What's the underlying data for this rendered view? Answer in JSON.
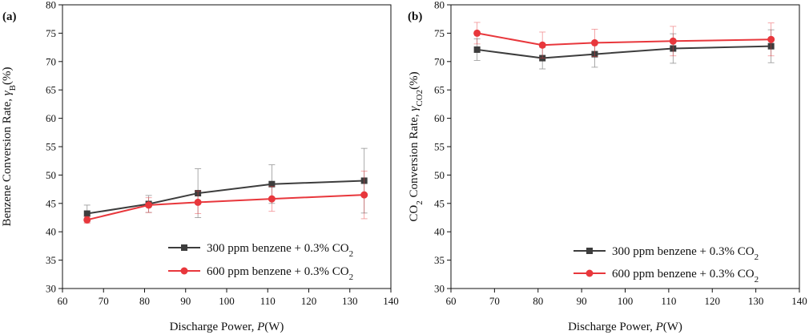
{
  "chart_data": [
    {
      "type": "line",
      "panel_label": "(a)",
      "xlabel_main": "Discharge Power, ",
      "xlabel_var": "P",
      "xlabel_unit": "(W)",
      "ylabel_main": "Benzene Conversion Rate,",
      "ylabel_var": "γ",
      "ylabel_sub": "B",
      "ylabel_unit": "(%)",
      "xlim": [
        60,
        140
      ],
      "ylim": [
        30,
        80
      ],
      "xticks": [
        60,
        70,
        80,
        90,
        100,
        110,
        120,
        130,
        140
      ],
      "yticks": [
        30,
        35,
        40,
        45,
        50,
        55,
        60,
        65,
        70,
        75,
        80
      ],
      "legend_position": "bottom-right",
      "series": [
        {
          "name": "300 ppm benzene + 0.3% CO",
          "name_sub": "2",
          "color": "#3d3d3d",
          "marker": "square",
          "x": [
            66,
            81,
            93,
            111,
            133.5
          ],
          "y": [
            43.2,
            44.9,
            46.8,
            48.4,
            49.0
          ],
          "yerr": [
            1.5,
            1.5,
            4.3,
            3.4,
            5.7
          ]
        },
        {
          "name": "600 ppm benzene + 0.3% CO",
          "name_sub": "2",
          "color": "#e8373c",
          "marker": "circle",
          "x": [
            66,
            81,
            93,
            111,
            133.5
          ],
          "y": [
            42.1,
            44.7,
            45.2,
            45.8,
            46.5
          ],
          "yerr": [
            0.6,
            1.3,
            2.0,
            2.2,
            4.2
          ]
        }
      ]
    },
    {
      "type": "line",
      "panel_label": "(b)",
      "xlabel_main": "Discharge Power, ",
      "xlabel_var": "P",
      "xlabel_unit": "(W)",
      "ylabel_main": "CO",
      "ylabel_sub1": "2",
      "ylabel_mid": " Conversion Rate, ",
      "ylabel_var": "γ",
      "ylabel_sub": "CO2",
      "ylabel_unit": "(%)",
      "xlim": [
        60,
        140
      ],
      "ylim": [
        30,
        80
      ],
      "xticks": [
        60,
        70,
        80,
        90,
        100,
        110,
        120,
        130,
        140
      ],
      "yticks": [
        30,
        35,
        40,
        45,
        50,
        55,
        60,
        65,
        70,
        75,
        80
      ],
      "legend_position": "bottom-right",
      "series": [
        {
          "name": "300 ppm benzene + 0.3% CO",
          "name_sub": "2",
          "color": "#3d3d3d",
          "marker": "square",
          "x": [
            66,
            81,
            93,
            111,
            133.5
          ],
          "y": [
            72.1,
            70.6,
            71.3,
            72.3,
            72.7
          ],
          "yerr": [
            1.9,
            1.9,
            2.3,
            2.6,
            2.9
          ]
        },
        {
          "name": "600 ppm benzene + 0.3% CO",
          "name_sub": "2",
          "color": "#e8373c",
          "marker": "circle",
          "x": [
            66,
            81,
            93,
            111,
            133.5
          ],
          "y": [
            75.0,
            72.9,
            73.3,
            73.6,
            73.9
          ],
          "yerr": [
            1.9,
            2.3,
            2.4,
            2.6,
            2.9
          ]
        }
      ]
    }
  ]
}
